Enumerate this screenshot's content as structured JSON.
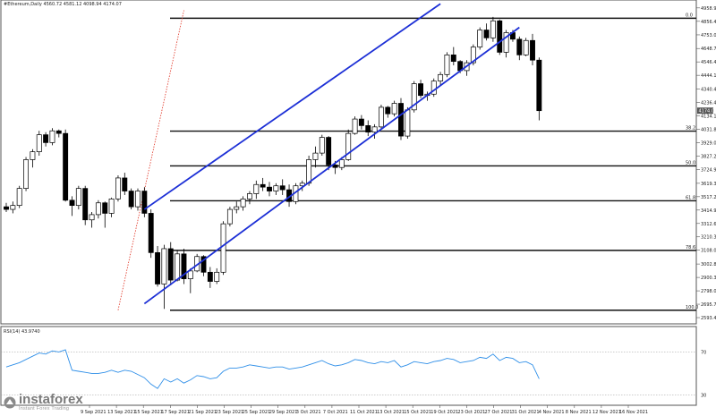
{
  "chart_data": [
    {
      "type": "candlestick",
      "title": "#Ethereum,Daily 4560.72 4581.12 4098.94 4174.07",
      "price_axis": {
        "ylim": [
          2580,
          4985
        ],
        "tick_labels": [
          "4958.90",
          "4856.40",
          "4753.00",
          "4648.70",
          "4546.40",
          "4444.10",
          "4340.40",
          "4236.40",
          "4134.10",
          "4031.80",
          "3929.00",
          "3827.20",
          "3724.90",
          "3619.30",
          "3517.20",
          "3414.90",
          "3312.60",
          "3210.30",
          "3108.00",
          "3002.80",
          "2900.30",
          "2798.00",
          "2695.70",
          "2593.40"
        ],
        "current_price": "4174.07"
      },
      "date_axis": [
        "9 Sep 2021",
        "13 Sep 2021",
        "15 Sep 2021",
        "17 Sep 2021",
        "21 Sep 2021",
        "23 Sep 2021",
        "25 Sep 2021",
        "29 Sep 2021",
        "3 Oct 2021",
        "7 Oct 2021",
        "11 Oct 2021",
        "13 Oct 2021",
        "15 Oct 2021",
        "19 Oct 2021",
        "23 Oct 2021",
        "27 Oct 2021",
        "31 Oct 2021",
        "4 Nov 2021",
        "8 Nov 2021",
        "12 Nov 2021",
        "16 Nov 2021"
      ],
      "candles": [
        [
          3440,
          3470,
          3400,
          3420
        ],
        [
          3420,
          3480,
          3390,
          3450
        ],
        [
          3450,
          3600,
          3430,
          3580
        ],
        [
          3580,
          3820,
          3560,
          3800
        ],
        [
          3800,
          3880,
          3740,
          3860
        ],
        [
          3860,
          4020,
          3830,
          3990
        ],
        [
          3990,
          4010,
          3900,
          3930
        ],
        [
          3930,
          4040,
          3910,
          4020
        ],
        [
          4020,
          4030,
          3970,
          4000
        ],
        [
          4000,
          4030,
          3480,
          3490
        ],
        [
          3490,
          3520,
          3370,
          3450
        ],
        [
          3450,
          3600,
          3420,
          3580
        ],
        [
          3580,
          3600,
          3300,
          3340
        ],
        [
          3340,
          3400,
          3280,
          3380
        ],
        [
          3380,
          3490,
          3350,
          3470
        ],
        [
          3470,
          3480,
          3280,
          3390
        ],
        [
          3390,
          3510,
          3360,
          3500
        ],
        [
          3500,
          3680,
          3480,
          3660
        ],
        [
          3660,
          3700,
          3530,
          3560
        ],
        [
          3560,
          3580,
          3420,
          3440
        ],
        [
          3440,
          3580,
          3410,
          3560
        ],
        [
          3560,
          3590,
          3360,
          3390
        ],
        [
          3390,
          3420,
          3050,
          3090
        ],
        [
          3090,
          3140,
          2830,
          2850
        ],
        [
          2850,
          3150,
          2660,
          3120
        ],
        [
          3120,
          3170,
          2840,
          2880
        ],
        [
          2880,
          3110,
          2870,
          3080
        ],
        [
          3080,
          3120,
          2850,
          2890
        ],
        [
          2890,
          2970,
          2780,
          2950
        ],
        [
          2950,
          3080,
          2940,
          3060
        ],
        [
          3060,
          3070,
          2910,
          2940
        ],
        [
          2940,
          2980,
          2820,
          2870
        ],
        [
          2870,
          2970,
          2850,
          2940
        ],
        [
          2940,
          3330,
          2920,
          3310
        ],
        [
          3310,
          3440,
          3290,
          3420
        ],
        [
          3420,
          3480,
          3390,
          3440
        ],
        [
          3440,
          3520,
          3410,
          3500
        ],
        [
          3500,
          3560,
          3460,
          3540
        ],
        [
          3540,
          3640,
          3500,
          3610
        ],
        [
          3610,
          3660,
          3560,
          3590
        ],
        [
          3590,
          3630,
          3520,
          3560
        ],
        [
          3560,
          3620,
          3530,
          3600
        ],
        [
          3600,
          3650,
          3530,
          3570
        ],
        [
          3570,
          3610,
          3440,
          3480
        ],
        [
          3480,
          3620,
          3460,
          3600
        ],
        [
          3600,
          3640,
          3560,
          3620
        ],
        [
          3620,
          3830,
          3600,
          3800
        ],
        [
          3800,
          3900,
          3740,
          3850
        ],
        [
          3850,
          3990,
          3830,
          3970
        ],
        [
          3970,
          3980,
          3720,
          3760
        ],
        [
          3760,
          3790,
          3690,
          3740
        ],
        [
          3740,
          3820,
          3720,
          3800
        ],
        [
          3800,
          4030,
          3790,
          4000
        ],
        [
          4000,
          4130,
          3990,
          4110
        ],
        [
          4110,
          4140,
          4030,
          4060
        ],
        [
          4060,
          4100,
          3980,
          4010
        ],
        [
          4010,
          4070,
          3960,
          4050
        ],
        [
          4050,
          4220,
          4030,
          4200
        ],
        [
          4200,
          4210,
          4120,
          4150
        ],
        [
          4150,
          4250,
          4130,
          4230
        ],
        [
          4230,
          4270,
          3950,
          3980
        ],
        [
          3980,
          4200,
          3960,
          4180
        ],
        [
          4180,
          4400,
          4160,
          4380
        ],
        [
          4380,
          4410,
          4270,
          4290
        ],
        [
          4290,
          4320,
          4250,
          4300
        ],
        [
          4300,
          4420,
          4280,
          4400
        ],
        [
          4400,
          4470,
          4360,
          4450
        ],
        [
          4450,
          4620,
          4430,
          4600
        ],
        [
          4600,
          4660,
          4520,
          4550
        ],
        [
          4550,
          4560,
          4460,
          4480
        ],
        [
          4480,
          4560,
          4440,
          4540
        ],
        [
          4540,
          4680,
          4520,
          4660
        ],
        [
          4660,
          4810,
          4640,
          4790
        ],
        [
          4790,
          4840,
          4710,
          4730
        ],
        [
          4730,
          4890,
          4700,
          4860
        ],
        [
          4860,
          4870,
          4600,
          4620
        ],
        [
          4620,
          4790,
          4580,
          4770
        ],
        [
          4770,
          4790,
          4700,
          4720
        ],
        [
          4720,
          4740,
          4560,
          4600
        ],
        [
          4600,
          4730,
          4590,
          4710
        ],
        [
          4710,
          4760,
          4520,
          4560
        ],
        [
          4560,
          4580,
          4100,
          4174
        ]
      ],
      "fibonacci_levels": [
        {
          "label": "0.0",
          "price": 4880
        },
        {
          "label": "38.2",
          "price": 4018
        },
        {
          "label": "50.0",
          "price": 3752
        },
        {
          "label": "61.8",
          "price": 3486
        },
        {
          "label": "78.6",
          "price": 3107
        },
        {
          "label": "100.0",
          "price": 2650
        }
      ],
      "channel": {
        "upper": [
          [
            21,
            3420
          ],
          [
            66,
            4990
          ]
        ],
        "lower": [
          [
            21,
            2700
          ],
          [
            78,
            4810
          ]
        ],
        "color": "#1c2fd6"
      },
      "trend_line": {
        "from": [
          17,
          2650
        ],
        "to": [
          27,
          4940
        ],
        "color": "#e03020"
      }
    },
    {
      "type": "line",
      "title": "RSI(14) 43.9740",
      "ylim": [
        22,
        92
      ],
      "levels": [
        70,
        30
      ],
      "level_labels": [
        "70",
        "30"
      ],
      "color": "#2f8fe8",
      "values": [
        56,
        58,
        60,
        63,
        66,
        69,
        68,
        71,
        70,
        72,
        53,
        52,
        51,
        50,
        50,
        51,
        53,
        51,
        53,
        52,
        49,
        46,
        40,
        36,
        45,
        42,
        45,
        41,
        44,
        48,
        47,
        45,
        46,
        52,
        55,
        55,
        56,
        58,
        57,
        56,
        55,
        56,
        56,
        54,
        55,
        56,
        58,
        60,
        62,
        59,
        57,
        58,
        60,
        63,
        62,
        60,
        59,
        61,
        60,
        62,
        56,
        58,
        61,
        60,
        59,
        61,
        62,
        64,
        63,
        60,
        61,
        62,
        65,
        64,
        68,
        62,
        65,
        64,
        60,
        61,
        58,
        45
      ]
    }
  ],
  "branding": {
    "name": "instaforex",
    "tagline": "Instant Forex Trading",
    "color": "#7a7a7a"
  }
}
